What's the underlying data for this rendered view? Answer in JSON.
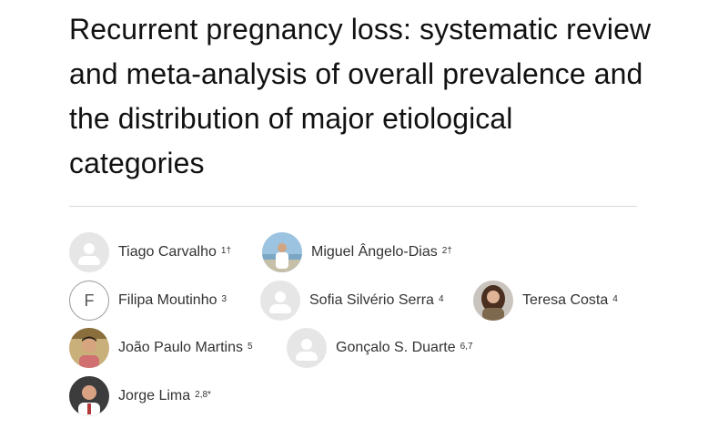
{
  "article": {
    "title": "Recurrent pregnancy loss: systematic review and meta-analysis of overall prevalence and the distribution of major etiological categories"
  },
  "authors": [
    {
      "name": "Tiago Carvalho",
      "affiliations": "1†",
      "avatar": "placeholder-person-icon"
    },
    {
      "name": "Miguel Ângelo-Dias",
      "affiliations": "2†",
      "avatar": "photo"
    },
    {
      "name": "Filipa Moutinho",
      "affiliations": "3",
      "avatar": "initial",
      "initial": "F"
    },
    {
      "name": "Sofia Silvério Serra",
      "affiliations": "4",
      "avatar": "placeholder-person-icon"
    },
    {
      "name": "Teresa Costa",
      "affiliations": "4",
      "avatar": "photo"
    },
    {
      "name": "João Paulo Martins",
      "affiliations": "5",
      "avatar": "photo"
    },
    {
      "name": "Gonçalo S. Duarte",
      "affiliations": "6,7",
      "avatar": "placeholder-person-icon"
    },
    {
      "name": "Jorge Lima",
      "affiliations": "2,8*",
      "avatar": "photo"
    }
  ],
  "colors": {
    "placeholder_bg": "#e6e6e6",
    "divider": "#d9d9d9",
    "text": "#333333"
  }
}
